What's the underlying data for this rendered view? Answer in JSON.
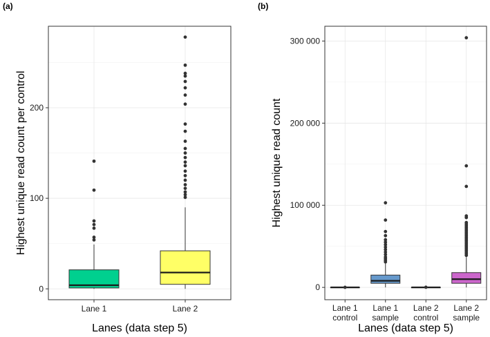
{
  "chart_data": [
    {
      "panel": "(a)",
      "type": "boxplot",
      "xlabel": "Lanes (data step 5)",
      "ylabel": "Highest unique read count per control",
      "ylim": [
        -12,
        290
      ],
      "yticks": [
        0,
        100,
        200
      ],
      "ytick_labels": [
        "0",
        "100",
        "200"
      ],
      "y_minor": [
        50,
        150,
        250
      ],
      "grid": true,
      "groups": [
        {
          "label": "Lane 1",
          "color": "#00D08F",
          "whisker_low": 0,
          "q1": 1,
          "median": 4,
          "q3": 21,
          "whisker_high": 49,
          "outliers": [
            54,
            57,
            67,
            71,
            75,
            109,
            141
          ]
        },
        {
          "label": "Lane 2",
          "color": "#FFFF66",
          "whisker_low": 0,
          "q1": 5,
          "median": 18,
          "q3": 42,
          "whisker_high": 90,
          "outliers": [
            101,
            104,
            107,
            111,
            115,
            120,
            125,
            130,
            136,
            140,
            145,
            150,
            155,
            163,
            174,
            182,
            204,
            214,
            222,
            229,
            235,
            238,
            247,
            278
          ]
        }
      ]
    },
    {
      "panel": "(b)",
      "type": "boxplot",
      "xlabel": "Lanes (data step 5)",
      "ylabel": "Highest unique read count",
      "ylim": [
        -15000,
        318000
      ],
      "yticks": [
        0,
        100000,
        200000,
        300000
      ],
      "ytick_labels": [
        "0",
        "100 000",
        "200 000",
        "300 000"
      ],
      "y_minor": [
        50000,
        150000,
        250000
      ],
      "grid": true,
      "groups": [
        {
          "label_line1": "Lane 1",
          "label_line2": "control",
          "color": "#333333",
          "whisker_low": 0,
          "q1": 0,
          "median": 0,
          "q3": 0,
          "whisker_high": 0,
          "outliers": [
            100
          ]
        },
        {
          "label_line1": "Lane 1",
          "label_line2": "sample",
          "color": "#6699CC",
          "whisker_low": 0,
          "q1": 5000,
          "median": 8000,
          "q3": 15000,
          "whisker_high": 29000,
          "outliers": [
            31000,
            33000,
            35000,
            37000,
            40000,
            43000,
            46000,
            49000,
            52000,
            55000,
            58000,
            63000,
            68000,
            82000,
            103000
          ]
        },
        {
          "label_line1": "Lane 2",
          "label_line2": "control",
          "color": "#333333",
          "whisker_low": 0,
          "q1": 0,
          "median": 0,
          "q3": 0,
          "whisker_high": 0,
          "outliers": [
            200
          ]
        },
        {
          "label_line1": "Lane 2",
          "label_line2": "sample",
          "color": "#CC66CC",
          "whisker_low": 0,
          "q1": 5000,
          "median": 10000,
          "q3": 18000,
          "whisker_high": 37000,
          "outliers": [
            39000,
            41000,
            43000,
            45000,
            47000,
            49000,
            51000,
            53000,
            55000,
            57000,
            59000,
            61000,
            63000,
            65000,
            67000,
            69000,
            71000,
            73000,
            75000,
            77000,
            79000,
            85000,
            87000,
            123000,
            148000,
            304000
          ]
        }
      ]
    }
  ]
}
